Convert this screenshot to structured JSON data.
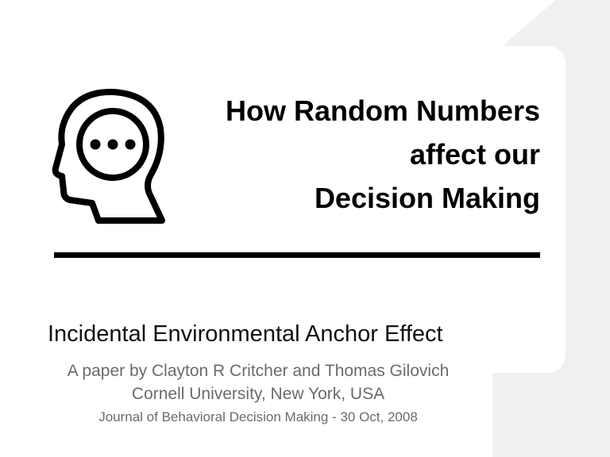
{
  "slide": {
    "title_lines": [
      "How Random Numbers",
      "affect our",
      "Decision Making"
    ],
    "subtitle": "Incidental Environmental Anchor Effect",
    "authors": "A paper by Clayton R Critcher and Thomas Gilovich",
    "affiliation": "Cornell University, New York, USA",
    "journal": "Journal of Behavioral Decision Making - 30 Oct, 2008",
    "icon": "head-thinking-icon",
    "colors": {
      "background_shape": "#f0f0f0",
      "text": "#000000",
      "muted_text": "#6b6b6b"
    }
  }
}
